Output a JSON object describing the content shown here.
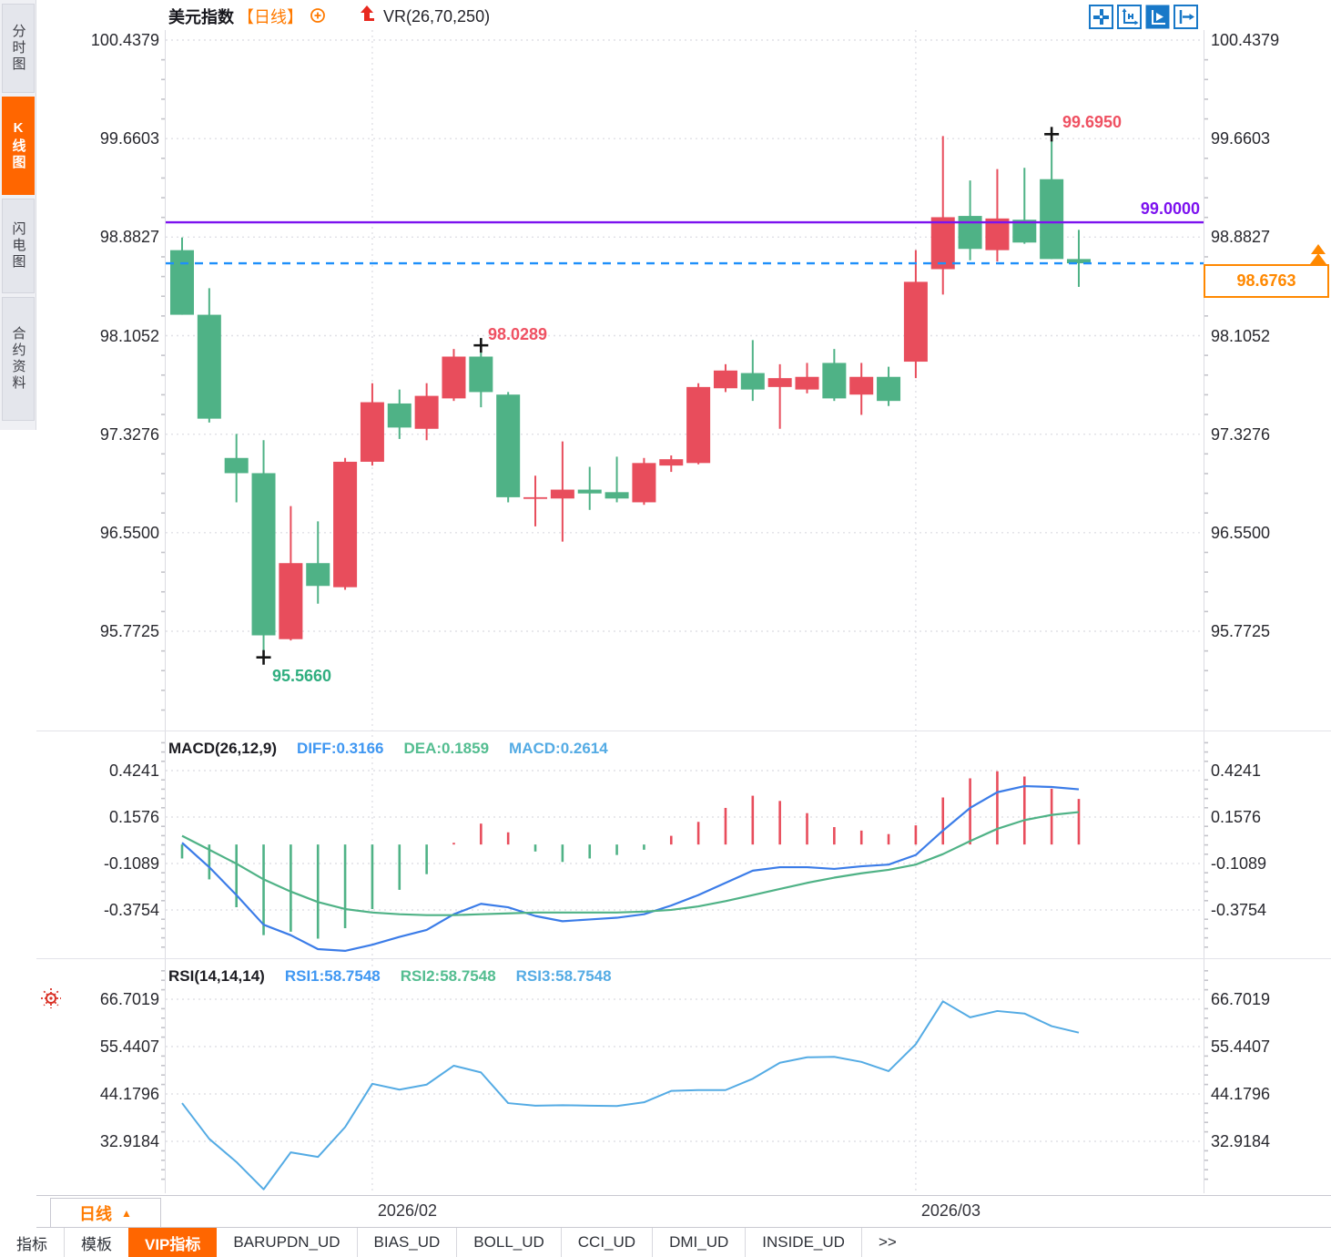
{
  "sidebar": {
    "tabs": [
      {
        "label": "分时图",
        "active": false
      },
      {
        "label": "K线图",
        "active": true
      },
      {
        "label": "闪电图",
        "active": false
      },
      {
        "label": "合约资料",
        "active": false
      }
    ]
  },
  "header": {
    "symbol": "美元指数",
    "period_tag": "【日线】",
    "vr_label": "VR(26,70,250)",
    "toolbar_icons": [
      "pan-crosshair",
      "axis-scale",
      "axis-play-active",
      "pane-shift-right"
    ]
  },
  "main_chart": {
    "y_axis_labels": [
      "100.4379",
      "99.6603",
      "98.8827",
      "98.1052",
      "97.3276",
      "96.5500",
      "95.7725"
    ],
    "annotations": {
      "high": "99.6950",
      "swing_high": "98.0289",
      "low": "95.5660",
      "hline": "99.0000",
      "last_price": "98.6763"
    }
  },
  "macd": {
    "title": "MACD(26,12,9)",
    "diff_label": "DIFF:0.3166",
    "dea_label": "DEA:0.1859",
    "macd_label": "MACD:0.2614",
    "y_axis_labels": [
      "0.4241",
      "0.1576",
      "-0.1089",
      "-0.3754"
    ]
  },
  "rsi": {
    "title": "RSI(14,14,14)",
    "rsi1_label": "RSI1:58.7548",
    "rsi2_label": "RSI2:58.7548",
    "rsi3_label": "RSI3:58.7548",
    "y_axis_labels": [
      "66.7019",
      "55.4407",
      "44.1796",
      "32.9184"
    ]
  },
  "x_axis": {
    "period_label": "日线",
    "dates": [
      "2026/02",
      "2026/03"
    ]
  },
  "bottom_tabs": [
    {
      "label": "指标",
      "active": false
    },
    {
      "label": "模板",
      "active": false
    },
    {
      "label": "VIP指标",
      "active": true
    },
    {
      "label": "BARUPDN_UD",
      "active": false
    },
    {
      "label": "BIAS_UD",
      "active": false
    },
    {
      "label": "BOLL_UD",
      "active": false
    },
    {
      "label": "CCI_UD",
      "active": false
    },
    {
      "label": "DMI_UD",
      "active": false
    },
    {
      "label": "INSIDE_UD",
      "active": false
    },
    {
      "label": ">>",
      "active": false
    }
  ],
  "colors": {
    "candle_up": "#e84d5c",
    "candle_down": "#4fb286",
    "purple_line": "#7c12ef",
    "dashed_line": "#1e8ffa",
    "accent_orange": "#ff6600",
    "price_tag_orange": "#ff8800",
    "macd_diff_line": "#3b7ce8",
    "macd_dea_line": "#4fb286",
    "rsi_line": "#54abe4",
    "annotation_red": "#ef5162",
    "annotation_green": "#2fae7f",
    "grid": "#e0e0e6",
    "icon_blue": "#1878c8",
    "marker_black": "#141414"
  },
  "chart_data": {
    "type": "candlestick",
    "title": "美元指数 日线",
    "legend_position": "top-left",
    "grid": true,
    "price_axis_ticks": [
      100.4379,
      99.6603,
      98.8827,
      98.1052,
      97.3276,
      96.55,
      95.7725
    ],
    "candles": [
      [
        98.78,
        98.88,
        98.27,
        98.27,
        "d"
      ],
      [
        98.27,
        98.48,
        97.42,
        97.45,
        "d"
      ],
      [
        97.14,
        97.33,
        96.79,
        97.02,
        "d"
      ],
      [
        97.02,
        97.28,
        95.566,
        95.74,
        "d"
      ],
      [
        95.71,
        96.76,
        95.7,
        96.31,
        "u"
      ],
      [
        96.31,
        96.64,
        95.99,
        96.13,
        "d"
      ],
      [
        96.12,
        97.14,
        96.1,
        97.11,
        "u"
      ],
      [
        97.11,
        97.73,
        97.08,
        97.58,
        "u"
      ],
      [
        97.57,
        97.68,
        97.29,
        97.38,
        "d"
      ],
      [
        97.37,
        97.73,
        97.28,
        97.63,
        "u"
      ],
      [
        97.61,
        98.0,
        97.59,
        97.94,
        "u"
      ],
      [
        97.94,
        98.0289,
        97.54,
        97.66,
        "d"
      ],
      [
        97.64,
        97.66,
        96.79,
        96.83,
        "d"
      ],
      [
        96.83,
        97.0,
        96.6,
        96.82,
        "u"
      ],
      [
        96.82,
        97.27,
        96.48,
        96.89,
        "u"
      ],
      [
        96.89,
        97.07,
        96.73,
        96.86,
        "d"
      ],
      [
        96.87,
        97.15,
        96.79,
        96.82,
        "d"
      ],
      [
        96.79,
        97.14,
        96.77,
        97.1,
        "u"
      ],
      [
        97.08,
        97.16,
        97.03,
        97.13,
        "u"
      ],
      [
        97.1,
        97.73,
        97.09,
        97.7,
        "u"
      ],
      [
        97.69,
        97.88,
        97.66,
        97.83,
        "u"
      ],
      [
        97.81,
        98.07,
        97.59,
        97.68,
        "d"
      ],
      [
        97.7,
        97.88,
        97.37,
        97.77,
        "u"
      ],
      [
        97.68,
        97.89,
        97.65,
        97.78,
        "u"
      ],
      [
        97.89,
        98.0,
        97.59,
        97.61,
        "d"
      ],
      [
        97.64,
        97.89,
        97.48,
        97.78,
        "u"
      ],
      [
        97.78,
        97.86,
        97.55,
        97.59,
        "d"
      ],
      [
        97.9,
        98.78,
        97.77,
        98.53,
        "u"
      ],
      [
        98.63,
        99.68,
        98.43,
        99.04,
        "u"
      ],
      [
        99.05,
        99.33,
        98.7,
        98.79,
        "d"
      ],
      [
        98.78,
        99.42,
        98.69,
        99.03,
        "u"
      ],
      [
        99.02,
        99.43,
        98.83,
        98.84,
        "d"
      ],
      [
        99.34,
        99.695,
        98.71,
        98.71,
        "d"
      ],
      [
        98.71,
        98.94,
        98.49,
        98.6763,
        "d"
      ]
    ],
    "markers": {
      "high": {
        "candle": 33,
        "price": 99.695,
        "label": "99.6950"
      },
      "swing_high": {
        "candle": 12,
        "price": 98.0289,
        "label": "98.0289"
      },
      "low": {
        "candle": 4,
        "price": 95.566,
        "label": "95.5660"
      }
    },
    "overlays": {
      "horizontal_line": 99.0,
      "last_price_dashed_line": 98.6763
    },
    "months": [
      {
        "label": "2026/02",
        "candle": 8
      },
      {
        "label": "2026/03",
        "candle": 28
      }
    ],
    "macd": {
      "params": [
        26,
        12,
        9
      ],
      "axis_ticks": [
        0.4241,
        0.1576,
        -0.1089,
        -0.3754
      ],
      "diff": [
        0.01,
        -0.13,
        -0.29,
        -0.46,
        -0.52,
        -0.6,
        -0.61,
        -0.575,
        -0.53,
        -0.49,
        -0.4,
        -0.34,
        -0.36,
        -0.41,
        -0.44,
        -0.43,
        -0.42,
        -0.4,
        -0.35,
        -0.29,
        -0.22,
        -0.15,
        -0.13,
        -0.13,
        -0.14,
        -0.125,
        -0.115,
        -0.06,
        0.08,
        0.21,
        0.3,
        0.335,
        0.33,
        0.3166
      ],
      "dea": [
        0.05,
        -0.03,
        -0.11,
        -0.2,
        -0.27,
        -0.33,
        -0.37,
        -0.39,
        -0.4,
        -0.405,
        -0.405,
        -0.4,
        -0.395,
        -0.39,
        -0.39,
        -0.39,
        -0.39,
        -0.385,
        -0.375,
        -0.355,
        -0.325,
        -0.29,
        -0.255,
        -0.22,
        -0.19,
        -0.165,
        -0.145,
        -0.115,
        -0.055,
        0.02,
        0.09,
        0.14,
        0.17,
        0.1859
      ],
      "final": {
        "diff": 0.3166,
        "dea": 0.1859,
        "macd": 0.2614
      }
    },
    "rsi": {
      "params": [
        14,
        14,
        14
      ],
      "axis_ticks": [
        66.7019,
        55.4407,
        44.1796,
        32.9184
      ],
      "values": [
        42.0,
        33.5,
        28.0,
        21.5,
        30.3,
        29.2,
        36.3,
        46.6,
        45.2,
        46.4,
        50.9,
        49.3,
        42.0,
        41.4,
        41.5,
        41.4,
        41.3,
        42.2,
        44.9,
        45.1,
        45.1,
        47.8,
        51.6,
        52.9,
        53.0,
        51.8,
        49.6,
        56.0,
        66.2,
        62.4,
        63.9,
        63.3,
        60.3,
        58.7548
      ],
      "final": {
        "rsi1": 58.7548,
        "rsi2": 58.7548,
        "rsi3": 58.7548
      }
    }
  }
}
